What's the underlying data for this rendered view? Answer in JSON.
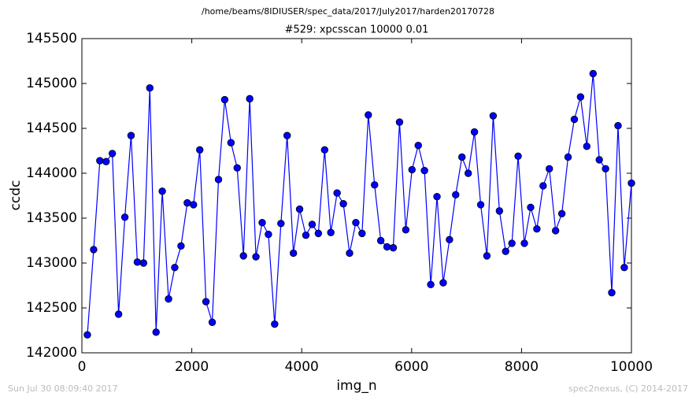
{
  "chart_data": {
    "type": "line",
    "suptitle": "/home/beams/8IDIUSER/spec_data/2017/July2017/harden20170728",
    "title": "#529: xpcsscan 10000 0.01",
    "xlabel": "img_n",
    "ylabel": "ccdc",
    "footer_left": "Sun Jul 30 08:09:40 2017",
    "footer_right": "spec2nexus, (C) 2014-2017",
    "x": [
      100,
      214,
      327,
      441,
      554,
      668,
      782,
      895,
      1009,
      1122,
      1236,
      1350,
      1463,
      1577,
      1690,
      1804,
      1918,
      2031,
      2145,
      2258,
      2372,
      2486,
      2599,
      2713,
      2826,
      2940,
      3054,
      3167,
      3281,
      3394,
      3508,
      3622,
      3735,
      3849,
      3962,
      4076,
      4190,
      4303,
      4417,
      4530,
      4644,
      4758,
      4871,
      4985,
      5098,
      5212,
      5326,
      5439,
      5553,
      5666,
      5780,
      5894,
      6007,
      6121,
      6234,
      6348,
      6462,
      6575,
      6689,
      6802,
      6916,
      7030,
      7143,
      7257,
      7370,
      7484,
      7598,
      7711,
      7825,
      7938,
      8052,
      8166,
      8279,
      8393,
      8506,
      8620,
      8734,
      8847,
      8961,
      9074,
      9188,
      9302,
      9415,
      9529,
      9642,
      9756,
      9870,
      10000
    ],
    "series": [
      {
        "color": "#0000ff",
        "values": [
          142200,
          143150,
          144140,
          144130,
          144220,
          142430,
          143510,
          144420,
          143010,
          143000,
          144950,
          142230,
          143800,
          142600,
          142950,
          143190,
          143670,
          143650,
          144260,
          142570,
          142340,
          143930,
          144820,
          144340,
          144060,
          143080,
          144830,
          143070,
          143450,
          143320,
          142320,
          143440,
          144420,
          143110,
          143600,
          143310,
          143430,
          143330,
          144260,
          143340,
          143780,
          143660,
          143110,
          143450,
          143330,
          144650,
          143870,
          143250,
          143180,
          143170,
          144570,
          143370,
          144040,
          144310,
          144030,
          142760,
          143740,
          142780,
          143260,
          143760,
          144180,
          144000,
          144460,
          143650,
          143080,
          144640,
          143580,
          143130,
          143220,
          144190,
          143220,
          143620,
          143380,
          143860,
          144050,
          143360,
          143550,
          144180,
          144600,
          144850,
          144300,
          145110,
          144150,
          144050,
          142670,
          144530,
          142950,
          143890
        ]
      }
    ],
    "xlim": [
      0,
      10000
    ],
    "ylim": [
      142000,
      145500
    ],
    "xticks": [
      0,
      2000,
      4000,
      6000,
      8000,
      10000
    ],
    "yticks": [
      142000,
      142500,
      143000,
      143500,
      144000,
      144500,
      145000,
      145500
    ]
  }
}
